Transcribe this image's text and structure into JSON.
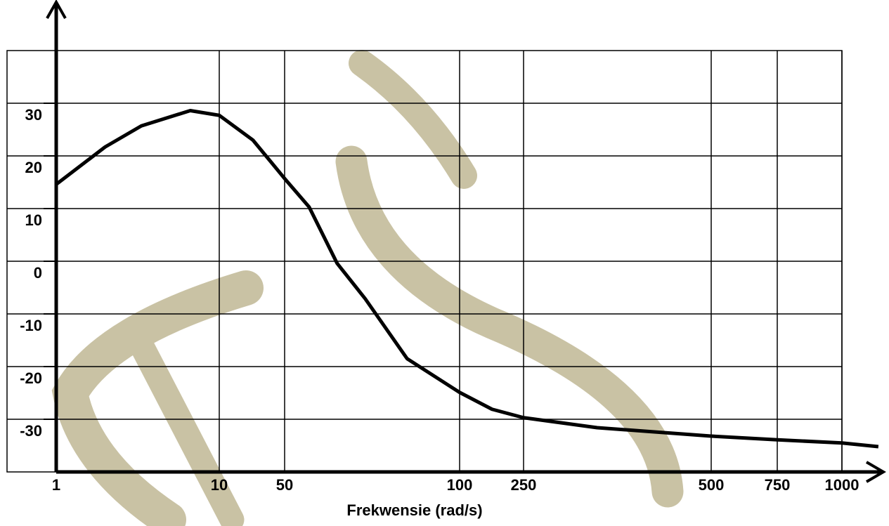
{
  "chart_data": {
    "type": "line",
    "x_label": "Frekwensie (rad/s)",
    "x": [
      1,
      3.7,
      5.7,
      8.4,
      10,
      30.6,
      50,
      57,
      65,
      73,
      85,
      100,
      176,
      250,
      348,
      500,
      750,
      1000,
      1141
    ],
    "series": [
      {
        "color": "#000000",
        "values": [
          14.6,
          21.7,
          25.7,
          28.6,
          27.7,
          23.0,
          15.7,
          10.3,
          -0.4,
          -7.1,
          -18.5,
          -24.9,
          -28.1,
          -29.7,
          -31.6,
          -33.2,
          -33.9,
          -34.5,
          -35.2
        ]
      }
    ],
    "xlim": [
      1,
      1150
    ],
    "xticks": [
      1,
      10,
      50,
      100,
      250,
      500,
      750,
      1000
    ],
    "ylim": [
      -40,
      40
    ],
    "yticks": [
      30,
      20,
      10,
      0,
      -10,
      -20,
      -30
    ],
    "grid": true
  }
}
